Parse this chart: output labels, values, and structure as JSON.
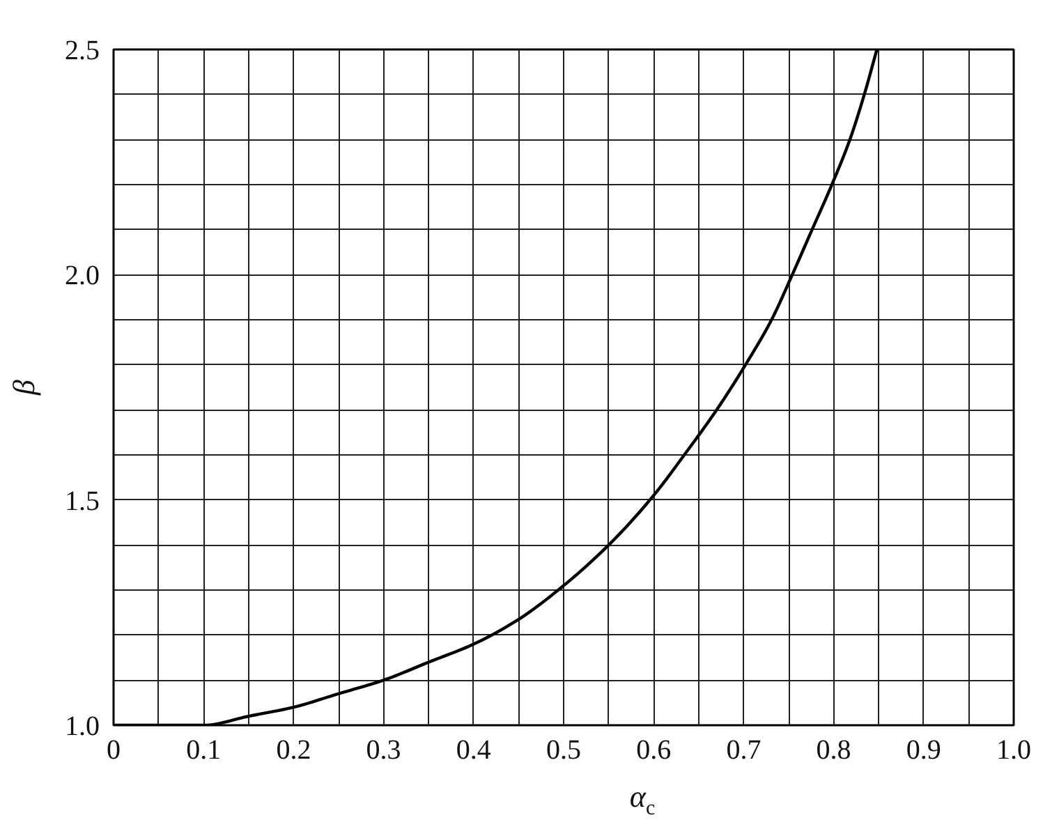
{
  "chart_data": {
    "type": "line",
    "xlabel": "α$_{c}$",
    "ylabel": "β",
    "x": [
      0,
      0.05,
      0.1,
      0.15,
      0.2,
      0.25,
      0.3,
      0.35,
      0.4,
      0.45,
      0.5,
      0.55,
      0.6,
      0.634,
      0.67,
      0.702,
      0.731,
      0.754,
      0.776,
      0.798,
      0.818,
      0.834,
      0.848
    ],
    "series": [
      {
        "color": "#000000",
        "values": [
          1.0,
          1.0,
          1.0,
          1.02,
          1.04,
          1.07,
          1.1,
          1.14,
          1.18,
          1.235,
          1.31,
          1.4,
          1.51,
          1.6,
          1.7,
          1.8,
          1.9,
          2.0,
          2.1,
          2.2,
          2.3,
          2.4,
          2.5
        ]
      }
    ],
    "xlim": [
      0,
      1
    ],
    "ylim": [
      1,
      2.5
    ],
    "xticks": [
      0,
      {
        "value": 0.05,
        "label": null
      },
      0.1,
      {
        "value": 0.15,
        "label": null
      },
      0.2,
      {
        "value": 0.25,
        "label": null
      },
      0.3,
      {
        "value": 0.35,
        "label": null
      },
      0.4,
      {
        "value": 0.45,
        "label": null
      },
      0.5,
      {
        "value": 0.55,
        "label": null
      },
      0.6,
      {
        "value": 0.65,
        "label": null
      },
      0.7,
      {
        "value": 0.75,
        "label": null
      },
      0.8,
      {
        "value": 0.85,
        "label": null
      },
      0.9,
      {
        "value": 0.95,
        "label": null
      },
      {
        "value": 1,
        "label": "1.0"
      }
    ],
    "yticks": [
      {
        "value": 1,
        "label": "1.0"
      },
      {
        "value": 1.1,
        "label": null
      },
      {
        "value": 1.2,
        "label": null
      },
      {
        "value": 1.3,
        "label": null
      },
      {
        "value": 1.4,
        "label": null
      },
      1.5,
      {
        "value": 1.6,
        "label": null
      },
      {
        "value": 1.7,
        "label": null
      },
      {
        "value": 1.8,
        "label": null
      },
      {
        "value": 1.9,
        "label": null
      },
      {
        "value": 2,
        "label": "2.0"
      },
      {
        "value": 2.1,
        "label": null
      },
      {
        "value": 2.2,
        "label": null
      },
      {
        "value": 2.3,
        "label": null
      },
      {
        "value": 2.4,
        "label": null
      },
      2.5
    ],
    "grid": true,
    "line_style": "solid"
  }
}
